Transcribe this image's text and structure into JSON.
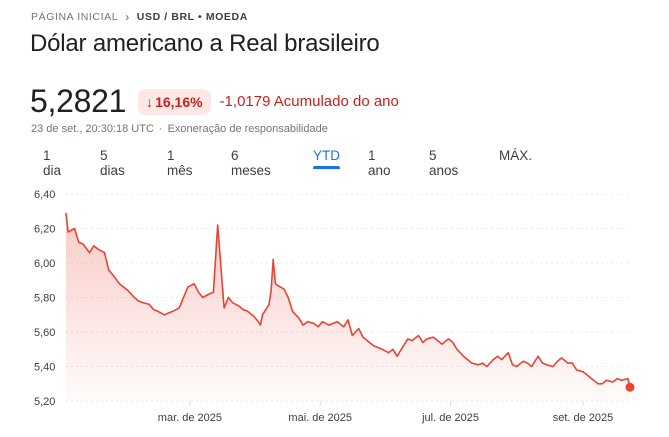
{
  "breadcrumb": {
    "home": "PÁGINA INICIAL",
    "separator_icon": "chevron-right-icon",
    "current": "USD / BRL • MOEDA"
  },
  "title": "Dólar americano a Real brasileiro",
  "quote": {
    "price": "5,2821",
    "change_percent": "16,16%",
    "change_percent_direction": "down",
    "change_value": "-1,0179 Acumulado do ano",
    "timestamp": "23 de set., 20:30:18 UTC",
    "separator": "·",
    "disclaimer": "Exoneração de responsabilidade"
  },
  "colors": {
    "negative": "#c5221f",
    "negative_bg": "#fce8e6",
    "accent": "#1a73e8",
    "line": "#ea4335"
  },
  "tabs": [
    {
      "label": "1 dia",
      "active": false
    },
    {
      "label": "5 dias",
      "active": false
    },
    {
      "label": "1 mês",
      "active": false
    },
    {
      "label": "6 meses",
      "active": false
    },
    {
      "label": "YTD",
      "active": true
    },
    {
      "label": "1 ano",
      "active": false
    },
    {
      "label": "5 anos",
      "active": false
    },
    {
      "label": "MÁX.",
      "active": false
    }
  ],
  "chart_data": {
    "type": "area",
    "ylim": [
      5.2,
      6.4
    ],
    "y_ticks": [
      "6,40",
      "6,20",
      "6,00",
      "5,80",
      "5,60",
      "5,40",
      "5,20"
    ],
    "x_ticks": [
      {
        "label": "mar. de 2025",
        "x": "2025-03-01"
      },
      {
        "label": "mai. de 2025",
        "x": "2025-05-01"
      },
      {
        "label": "jul. de 2025",
        "x": "2025-07-01"
      },
      {
        "label": "set. de 2025",
        "x": "2025-09-01"
      }
    ],
    "x_range": [
      "2025-01-02",
      "2025-09-23"
    ],
    "series": [
      {
        "x": [
          "2025-01-02",
          "2025-01-03",
          "2025-01-06",
          "2025-01-08",
          "2025-01-10",
          "2025-01-13",
          "2025-01-15",
          "2025-01-17",
          "2025-01-20",
          "2025-01-22",
          "2025-01-24",
          "2025-01-27",
          "2025-01-29",
          "2025-01-31",
          "2025-02-03",
          "2025-02-05",
          "2025-02-07",
          "2025-02-10",
          "2025-02-12",
          "2025-02-14",
          "2025-02-17",
          "2025-02-19",
          "2025-02-21",
          "2025-02-24",
          "2025-02-26",
          "2025-02-28",
          "2025-03-03",
          "2025-03-05",
          "2025-03-07",
          "2025-03-10",
          "2025-03-12",
          "2025-03-14",
          "2025-03-17",
          "2025-03-19",
          "2025-03-21",
          "2025-03-24",
          "2025-03-26",
          "2025-03-28",
          "2025-03-31",
          "2025-04-02",
          "2025-04-03",
          "2025-04-04",
          "2025-04-07",
          "2025-04-08",
          "2025-04-09",
          "2025-04-10",
          "2025-04-11",
          "2025-04-14",
          "2025-04-16",
          "2025-04-18",
          "2025-04-21",
          "2025-04-23",
          "2025-04-25",
          "2025-04-28",
          "2025-04-30",
          "2025-05-02",
          "2025-05-05",
          "2025-05-07",
          "2025-05-09",
          "2025-05-12",
          "2025-05-14",
          "2025-05-16",
          "2025-05-19",
          "2025-05-21",
          "2025-05-23",
          "2025-05-26",
          "2025-05-28",
          "2025-05-30",
          "2025-06-02",
          "2025-06-04",
          "2025-06-06",
          "2025-06-09",
          "2025-06-11",
          "2025-06-13",
          "2025-06-16",
          "2025-06-18",
          "2025-06-20",
          "2025-06-23",
          "2025-06-25",
          "2025-06-27",
          "2025-06-30",
          "2025-07-02",
          "2025-07-04",
          "2025-07-07",
          "2025-07-09",
          "2025-07-11",
          "2025-07-14",
          "2025-07-16",
          "2025-07-18",
          "2025-07-21",
          "2025-07-23",
          "2025-07-25",
          "2025-07-28",
          "2025-07-30",
          "2025-08-01",
          "2025-08-04",
          "2025-08-06",
          "2025-08-08",
          "2025-08-11",
          "2025-08-13",
          "2025-08-15",
          "2025-08-18",
          "2025-08-20",
          "2025-08-22",
          "2025-08-25",
          "2025-08-27",
          "2025-08-29",
          "2025-09-01",
          "2025-09-03",
          "2025-09-05",
          "2025-09-08",
          "2025-09-10",
          "2025-09-12",
          "2025-09-15",
          "2025-09-17",
          "2025-09-19",
          "2025-09-22",
          "2025-09-23"
        ],
        "y": [
          6.29,
          6.18,
          6.2,
          6.12,
          6.11,
          6.06,
          6.1,
          6.08,
          6.06,
          5.96,
          5.93,
          5.88,
          5.86,
          5.84,
          5.8,
          5.78,
          5.77,
          5.76,
          5.73,
          5.72,
          5.7,
          5.71,
          5.72,
          5.74,
          5.8,
          5.86,
          5.88,
          5.83,
          5.8,
          5.82,
          5.83,
          6.22,
          5.74,
          5.8,
          5.77,
          5.75,
          5.73,
          5.72,
          5.69,
          5.66,
          5.64,
          5.7,
          5.76,
          5.84,
          6.02,
          5.88,
          5.87,
          5.85,
          5.8,
          5.72,
          5.68,
          5.64,
          5.66,
          5.65,
          5.63,
          5.66,
          5.64,
          5.65,
          5.66,
          5.63,
          5.67,
          5.58,
          5.62,
          5.57,
          5.55,
          5.52,
          5.51,
          5.5,
          5.48,
          5.5,
          5.46,
          5.52,
          5.56,
          5.55,
          5.58,
          5.54,
          5.56,
          5.57,
          5.55,
          5.53,
          5.56,
          5.54,
          5.5,
          5.46,
          5.44,
          5.42,
          5.41,
          5.42,
          5.4,
          5.44,
          5.46,
          5.44,
          5.48,
          5.41,
          5.4,
          5.43,
          5.42,
          5.4,
          5.46,
          5.42,
          5.41,
          5.4,
          5.43,
          5.45,
          5.42,
          5.42,
          5.38,
          5.37,
          5.35,
          5.33,
          5.3,
          5.3,
          5.32,
          5.31,
          5.33,
          5.32,
          5.33,
          5.28
        ]
      }
    ]
  }
}
